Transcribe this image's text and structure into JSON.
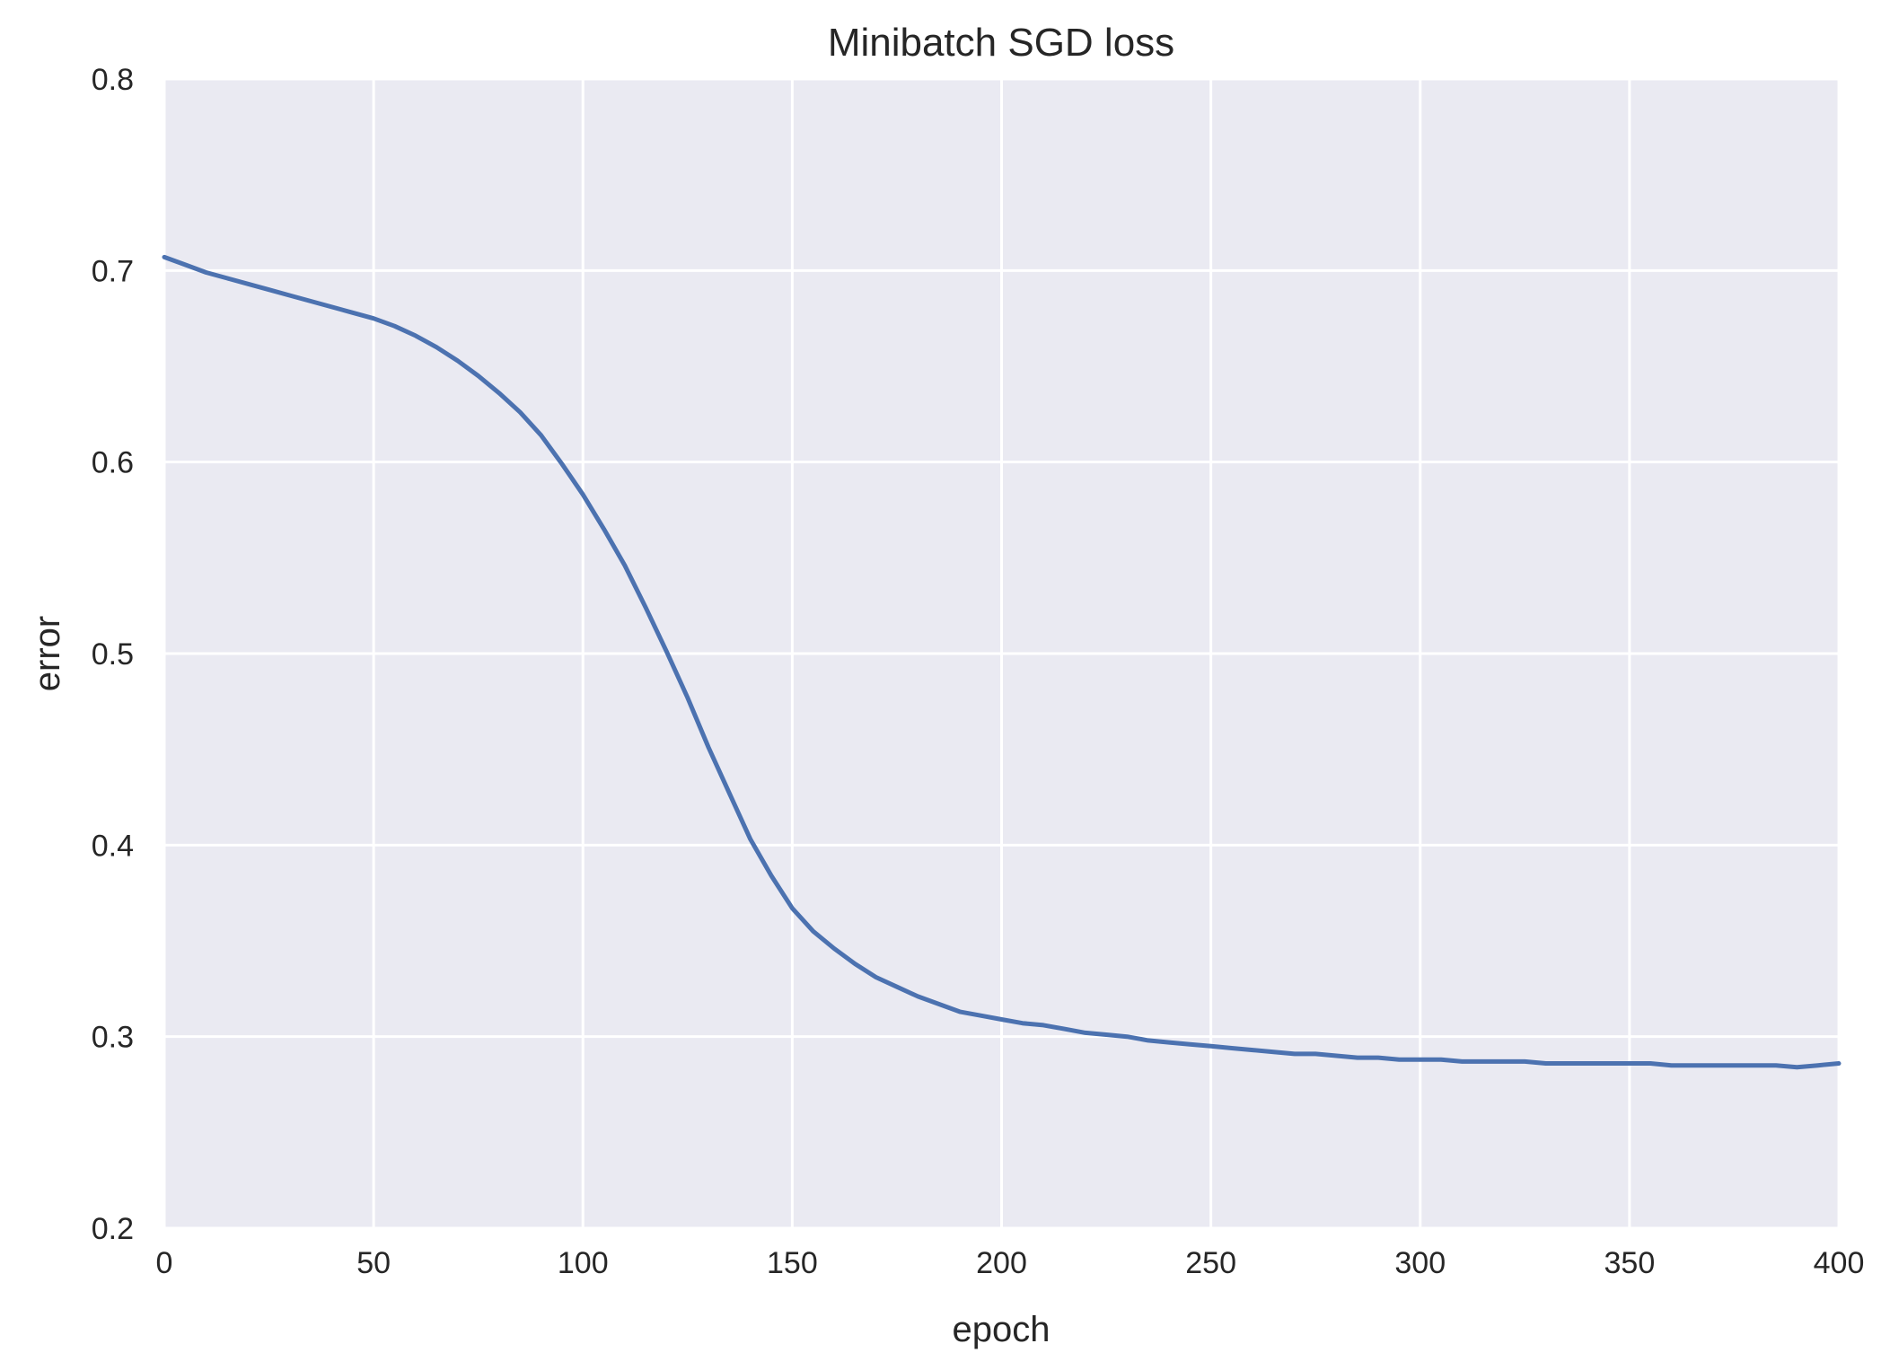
{
  "chart_data": {
    "type": "line",
    "title": "Minibatch SGD loss",
    "xlabel": "epoch",
    "ylabel": "error",
    "xlim": [
      0,
      400
    ],
    "ylim": [
      0.2,
      0.8
    ],
    "xticks": [
      0,
      50,
      100,
      150,
      200,
      250,
      300,
      350,
      400
    ],
    "xtick_labels": [
      "0",
      "50",
      "100",
      "150",
      "200",
      "250",
      "300",
      "350",
      "400"
    ],
    "yticks": [
      0.2,
      0.3,
      0.4,
      0.5,
      0.6,
      0.7,
      0.8
    ],
    "ytick_labels": [
      "0.2",
      "0.3",
      "0.4",
      "0.5",
      "0.6",
      "0.7",
      "0.8"
    ],
    "grid": true,
    "legend": "none",
    "colors": {
      "plot_background": "#eaeaf2",
      "grid": "#ffffff",
      "line": "#4c72b0",
      "text": "#262626"
    },
    "series": [
      {
        "x": [
          0,
          5,
          10,
          15,
          20,
          25,
          30,
          35,
          40,
          45,
          50,
          55,
          60,
          65,
          70,
          75,
          80,
          85,
          90,
          95,
          100,
          105,
          110,
          115,
          120,
          125,
          130,
          135,
          140,
          145,
          150,
          155,
          160,
          165,
          170,
          175,
          180,
          185,
          190,
          195,
          200,
          205,
          210,
          215,
          220,
          225,
          230,
          235,
          240,
          245,
          250,
          255,
          260,
          265,
          270,
          275,
          280,
          285,
          290,
          295,
          300,
          305,
          310,
          315,
          320,
          325,
          330,
          335,
          340,
          345,
          350,
          355,
          360,
          365,
          370,
          375,
          380,
          385,
          390,
          395,
          400
        ],
        "values": [
          0.707,
          0.703,
          0.699,
          0.696,
          0.693,
          0.69,
          0.687,
          0.684,
          0.681,
          0.678,
          0.675,
          0.671,
          0.666,
          0.66,
          0.653,
          0.645,
          0.636,
          0.626,
          0.614,
          0.599,
          0.583,
          0.565,
          0.546,
          0.524,
          0.501,
          0.477,
          0.451,
          0.427,
          0.403,
          0.384,
          0.367,
          0.355,
          0.346,
          0.338,
          0.331,
          0.326,
          0.321,
          0.317,
          0.313,
          0.311,
          0.309,
          0.307,
          0.306,
          0.304,
          0.302,
          0.301,
          0.3,
          0.298,
          0.297,
          0.296,
          0.295,
          0.294,
          0.293,
          0.292,
          0.291,
          0.291,
          0.29,
          0.289,
          0.289,
          0.288,
          0.288,
          0.288,
          0.287,
          0.287,
          0.287,
          0.287,
          0.286,
          0.286,
          0.286,
          0.286,
          0.286,
          0.286,
          0.285,
          0.285,
          0.285,
          0.285,
          0.285,
          0.285,
          0.284,
          0.285,
          0.286
        ]
      }
    ]
  }
}
